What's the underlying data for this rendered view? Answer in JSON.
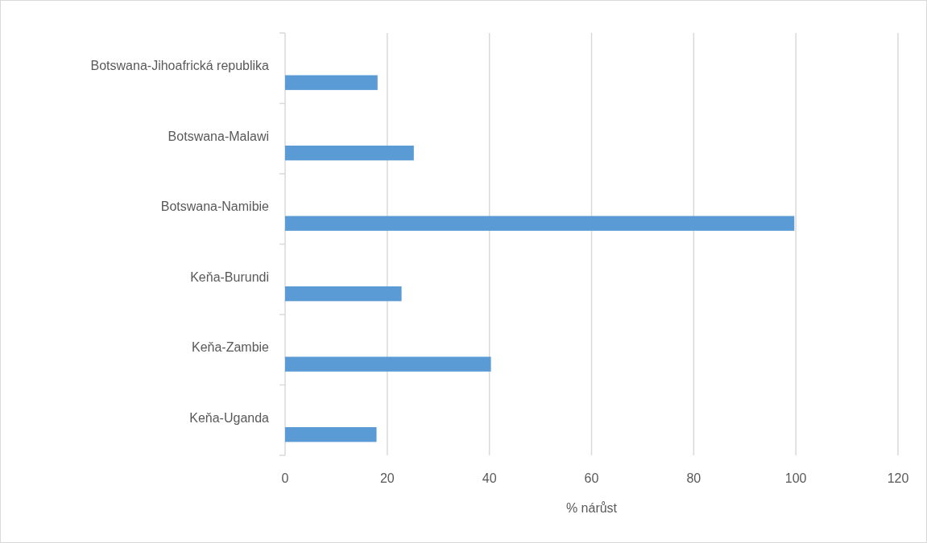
{
  "chart_data": {
    "type": "bar",
    "orientation": "horizontal",
    "xlabel": "% nárůst",
    "categories": [
      "Botswana-Jihoafrická republika",
      "Botswana-Malawi",
      "Botswana-Namibie",
      "Keňa-Burundi",
      "Keňa-Zambie",
      "Keňa-Uganda"
    ],
    "values": [
      18.1,
      25.2,
      99.7,
      22.8,
      40.3,
      17.9
    ],
    "color": "#5b9bd5",
    "xlim": [
      0,
      120
    ],
    "xticks": [
      0,
      20,
      40,
      60,
      80,
      100,
      120
    ],
    "grid": "x"
  }
}
